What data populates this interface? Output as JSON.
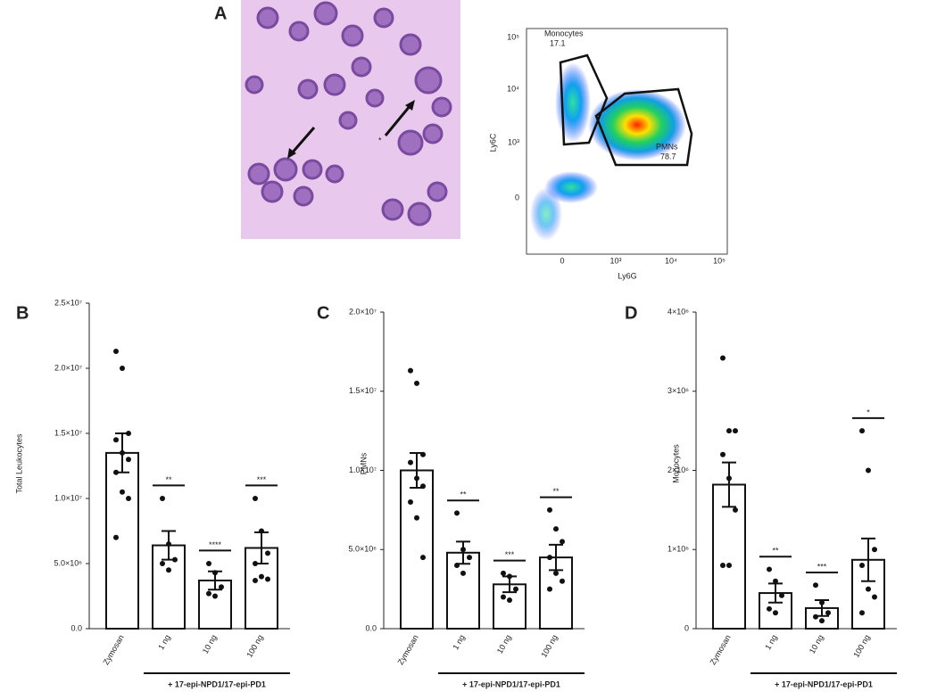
{
  "panel_a": {
    "label": "A",
    "flow": {
      "y_label": "Ly6C",
      "x_label": "Ly6G",
      "yticks": [
        "10⁵",
        "10⁴",
        "10³",
        "0"
      ],
      "xticks": [
        "0",
        "10³",
        "10⁴",
        "10⁵"
      ],
      "gates": [
        {
          "name": "Monocytes",
          "value": 17.1
        },
        {
          "name": "PMNs",
          "value": 78.7
        }
      ]
    }
  },
  "chart_data": [
    {
      "type": "bar",
      "panel": "B",
      "y_label": "Total Leukocytes",
      "group_label": "+ 17-epi-NPD1/17-epi-PD1",
      "categories": [
        "Zymosan",
        "1 ng",
        "10 ng",
        "100 ng"
      ],
      "values": [
        13500000,
        6400000,
        3700000,
        6200000
      ],
      "errors": [
        1500000,
        1100000,
        700000,
        1200000
      ],
      "points": [
        [
          21300000,
          20000000,
          15000000,
          14500000,
          13500000,
          13000000,
          12000000,
          10500000,
          10000000,
          7000000
        ],
        [
          10000000,
          6500000,
          5300000,
          5000000,
          4500000
        ],
        [
          5000000,
          4300000,
          3200000,
          2700000,
          2500000
        ],
        [
          10000000,
          7500000,
          5800000,
          5000000,
          4000000,
          3800000,
          3700000
        ]
      ],
      "significance": [
        null,
        "**",
        "****",
        "***"
      ],
      "color": "#ffffff",
      "ylim": [
        0,
        25000000
      ],
      "yticks": [
        {
          "value": 0,
          "label": "0.0"
        },
        {
          "value": 5000000,
          "label": "5.0×10⁶"
        },
        {
          "value": 10000000,
          "label": "1.0×10⁷"
        },
        {
          "value": 15000000,
          "label": "1.5×10⁷"
        },
        {
          "value": 20000000,
          "label": "2.0×10⁷"
        },
        {
          "value": 25000000,
          "label": "2.5×10⁷"
        }
      ]
    },
    {
      "type": "bar",
      "panel": "C",
      "y_label": "PMNs",
      "group_label": "+ 17-epi-NPD1/17-epi-PD1",
      "categories": [
        "Zymosan",
        "1 ng",
        "10 ng",
        "100 ng"
      ],
      "values": [
        10000000,
        4800000,
        2800000,
        4500000
      ],
      "errors": [
        1100000,
        700000,
        500000,
        800000
      ],
      "points": [
        [
          16300000,
          15500000,
          11000000,
          10500000,
          9500000,
          9000000,
          8000000,
          7000000,
          4500000
        ],
        [
          7300000,
          5000000,
          4500000,
          4000000,
          3500000
        ],
        [
          3500000,
          3300000,
          2500000,
          2000000,
          1800000
        ],
        [
          7500000,
          6300000,
          5500000,
          4500000,
          3500000,
          3000000,
          2500000
        ]
      ],
      "significance": [
        null,
        "**",
        "***",
        "**"
      ],
      "color": "#ffffff",
      "ylim": [
        0,
        20000000
      ],
      "yticks": [
        {
          "value": 0,
          "label": "0.0"
        },
        {
          "value": 5000000,
          "label": "5.0×10⁶"
        },
        {
          "value": 10000000,
          "label": "1.0×10⁷"
        },
        {
          "value": 15000000,
          "label": "1.5×10⁷"
        },
        {
          "value": 20000000,
          "label": "2.0×10⁷"
        }
      ]
    },
    {
      "type": "bar",
      "panel": "D",
      "y_label": "Monocytes",
      "group_label": "+ 17-epi-NPD1/17-epi-PD1",
      "categories": [
        "Zymosan",
        "1 ng",
        "10 ng",
        "100 ng"
      ],
      "values": [
        1820000,
        450000,
        260000,
        870000
      ],
      "errors": [
        280000,
        120000,
        100000,
        270000
      ],
      "points": [
        [
          3420000,
          2500000,
          2500000,
          2200000,
          1900000,
          1500000,
          800000,
          800000
        ],
        [
          750000,
          600000,
          420000,
          250000,
          200000
        ],
        [
          550000,
          330000,
          200000,
          150000,
          100000
        ],
        [
          2500000,
          2000000,
          1000000,
          800000,
          500000,
          400000,
          200000
        ]
      ],
      "significance": [
        null,
        "**",
        "***",
        "*"
      ],
      "color": "#ffffff",
      "ylim": [
        0,
        4000000
      ],
      "yticks": [
        0,
        {
          "value": 1000000,
          "label": "1×10⁶"
        },
        {
          "value": 2000000,
          "label": "2×10⁶"
        },
        {
          "value": 3000000,
          "label": "3×10⁶"
        },
        {
          "value": 4000000,
          "label": "4×10⁶"
        }
      ]
    }
  ]
}
